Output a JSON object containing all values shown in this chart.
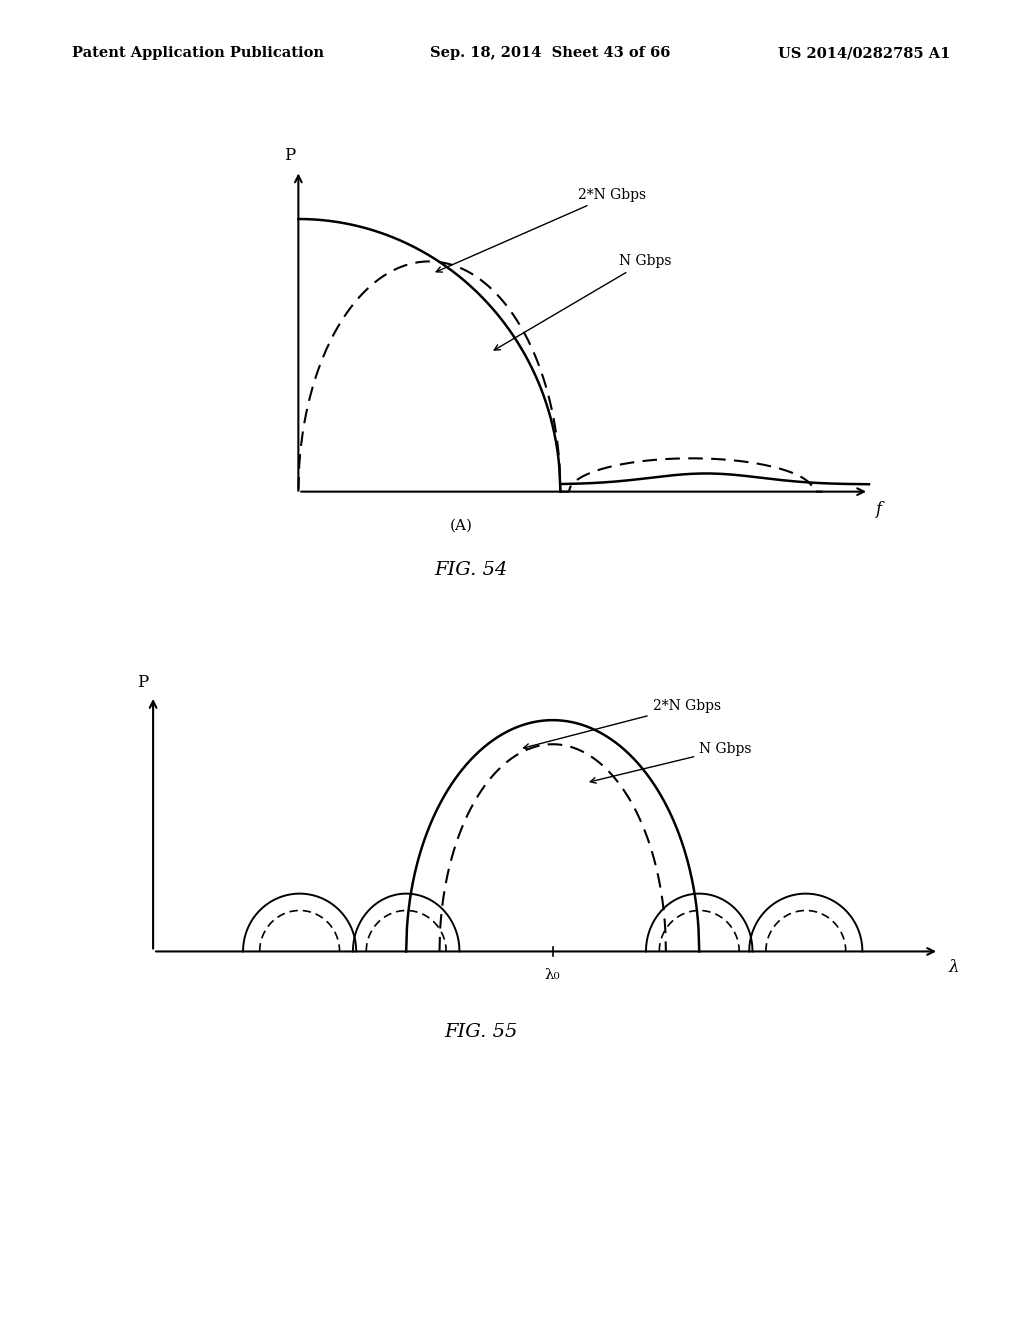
{
  "header_left": "Patent Application Publication",
  "header_center": "Sep. 18, 2014  Sheet 43 of 66",
  "header_right": "US 2014/0282785 A1",
  "fig54_title": "FIG. 54",
  "fig55_title": "FIG. 55",
  "background_color": "#ffffff",
  "fig54_label_A": "(A)",
  "fig54_xlabel": "f",
  "fig54_ylabel": "P",
  "fig54_label_2N": "2*N Gbps",
  "fig54_label_N": "N Gbps",
  "fig55_xlabel": "λ",
  "fig55_ylabel": "P",
  "fig55_label_x0": "λ₀",
  "fig55_label_2N": "2*N Gbps",
  "fig55_label_N": "N Gbps"
}
